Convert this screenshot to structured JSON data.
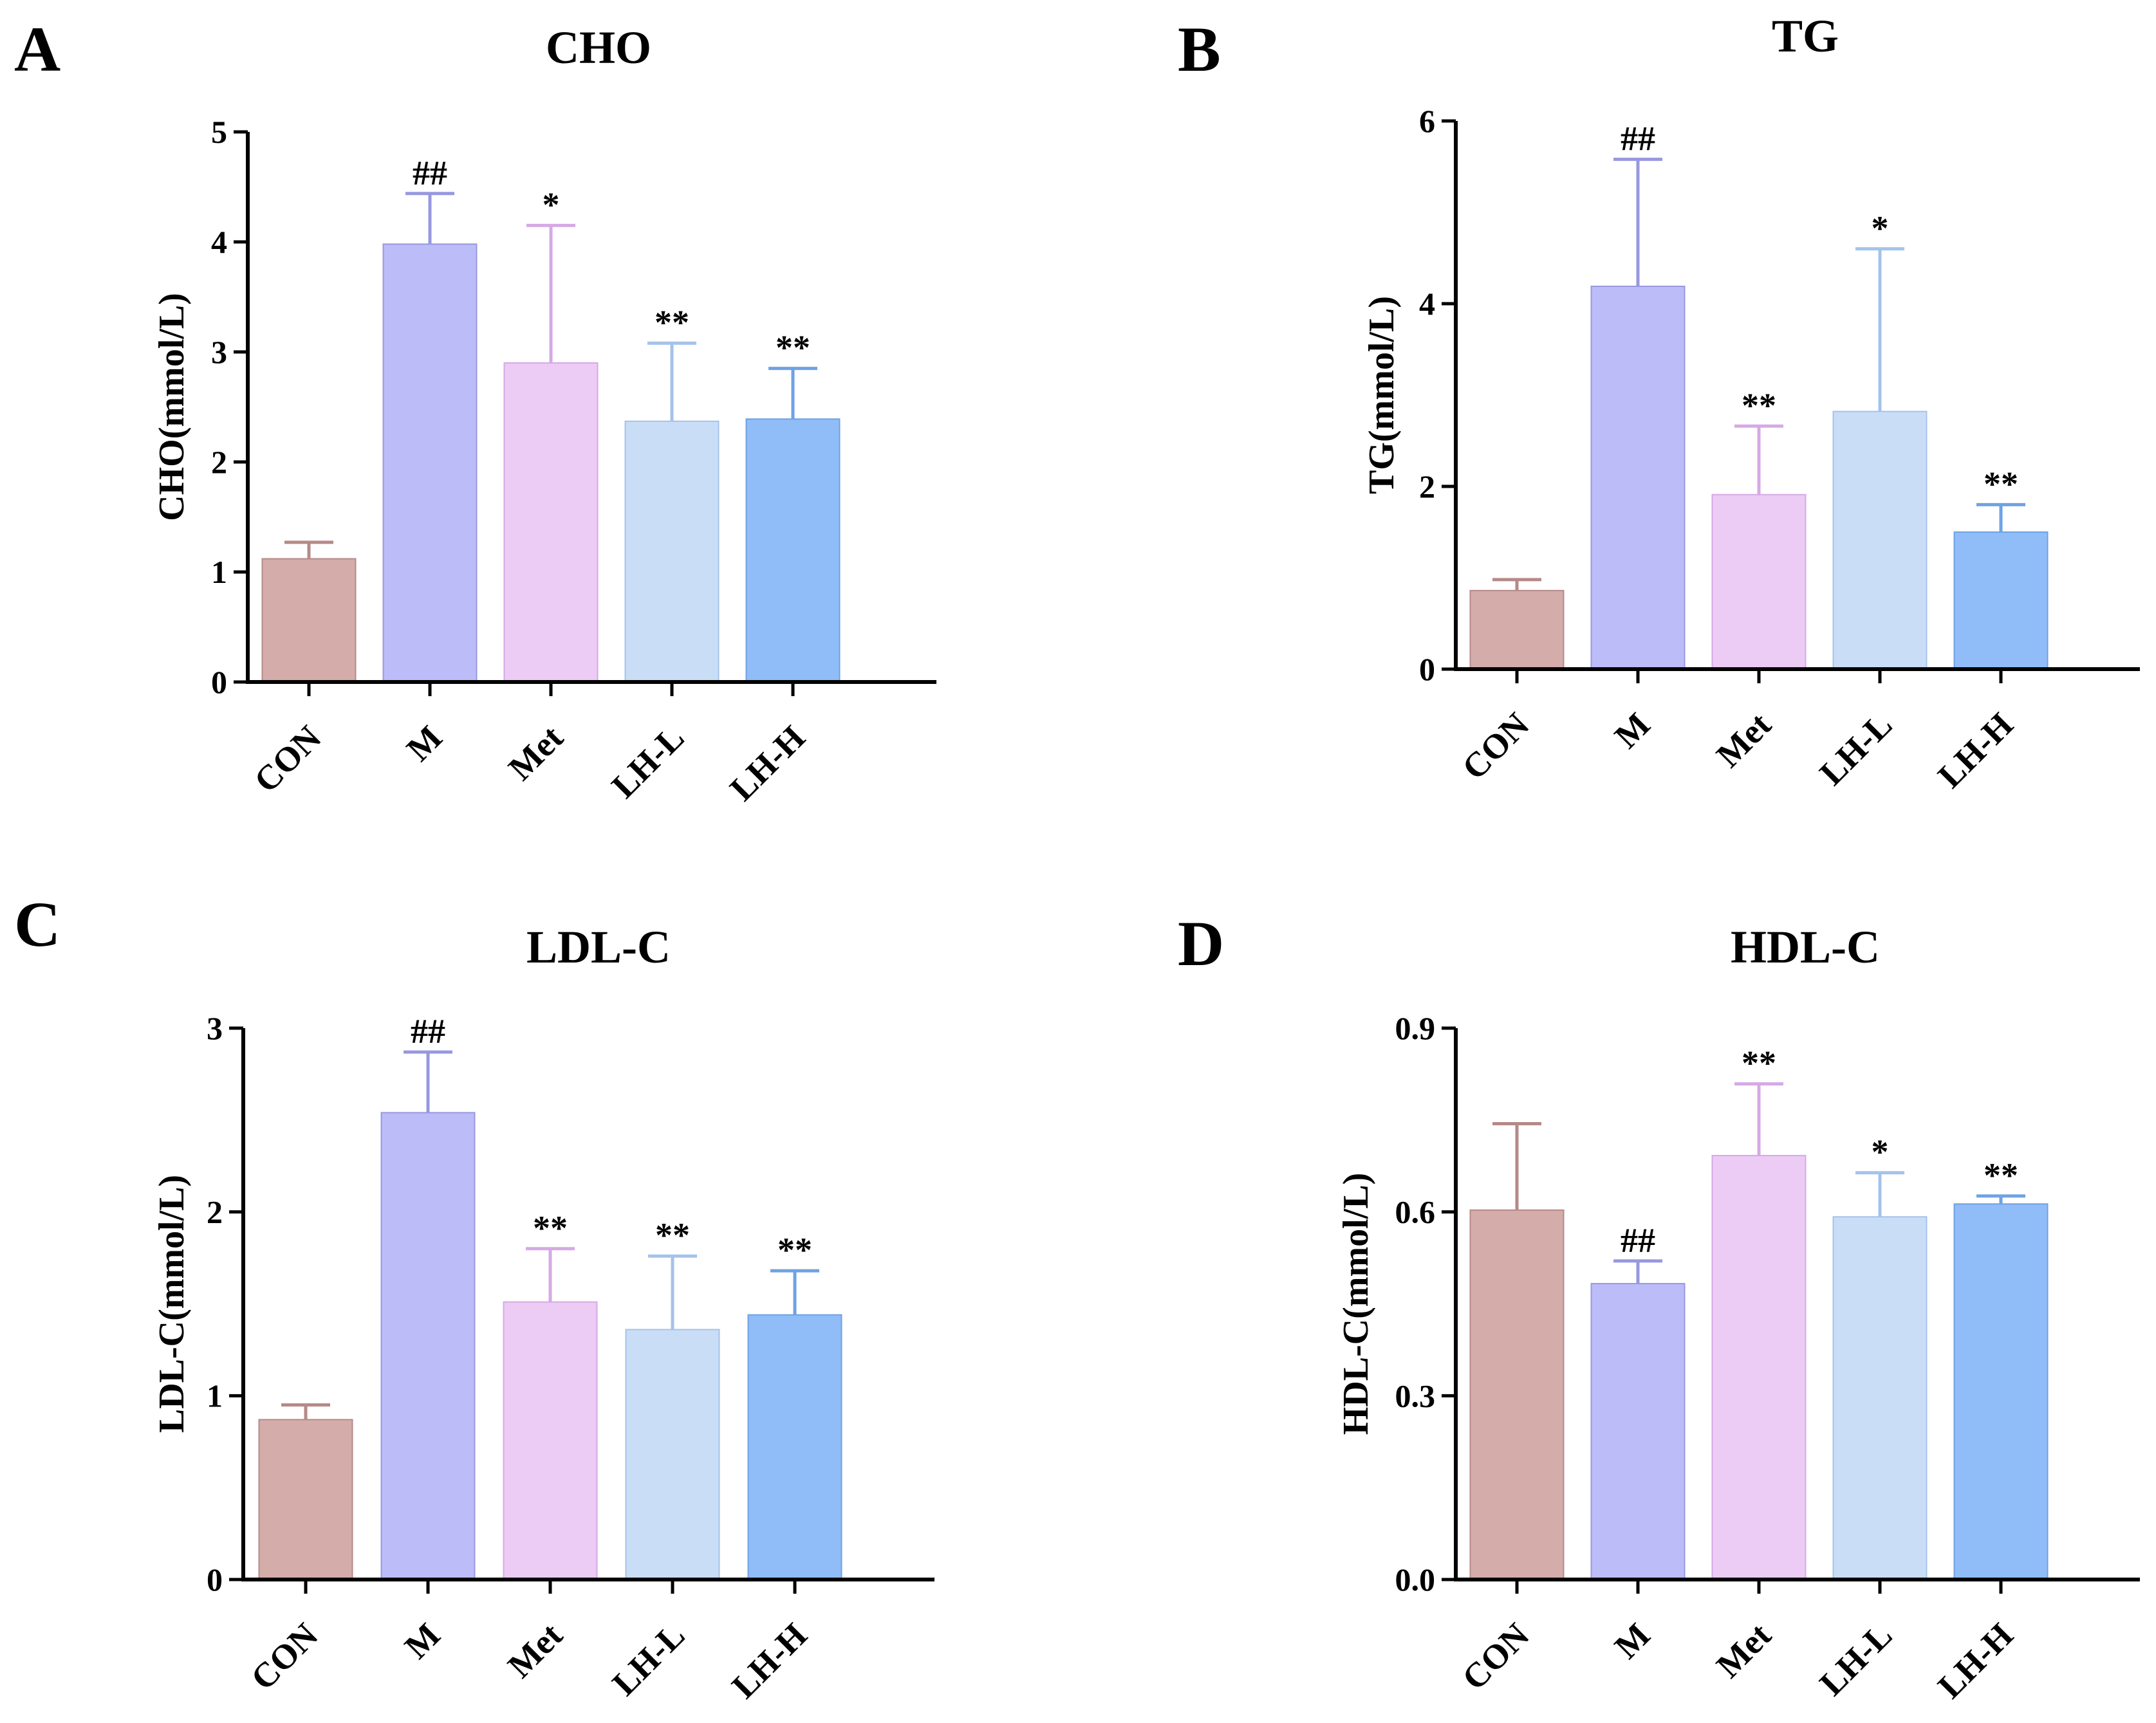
{
  "colors": {
    "CON": "#d4aca9",
    "M": "#bcbcf9",
    "Met": "#eccbf5",
    "LH-L": "#c9ddf7",
    "LH-H": "#90bdf7",
    "error_CON": "#b58a88",
    "error_M": "#9898e0",
    "error_Met": "#d6a9e5",
    "error_LH-L": "#a5c3e9",
    "error_LH-H": "#6fa2e3"
  },
  "chart_data": [
    {
      "panel": "A",
      "type": "bar",
      "title": "CHO",
      "ylabel": "CHO(mmol/L)",
      "categories": [
        "CON",
        "M",
        "Met",
        "LH-L",
        "LH-H"
      ],
      "values": [
        1.12,
        3.98,
        2.9,
        2.37,
        2.39
      ],
      "errors": [
        0.15,
        0.46,
        1.25,
        0.71,
        0.46
      ],
      "significance": [
        "",
        "##",
        "*",
        "**",
        "**"
      ],
      "ylim": [
        0,
        5
      ],
      "yticks": [
        0,
        1,
        2,
        3,
        4,
        5
      ],
      "ytick_labels": [
        "0",
        "1",
        "2",
        "3",
        "4",
        "5"
      ]
    },
    {
      "panel": "B",
      "type": "bar",
      "title": "TG",
      "ylabel": "TG(mmol/L)",
      "categories": [
        "CON",
        "M",
        "Met",
        "LH-L",
        "LH-H"
      ],
      "values": [
        0.86,
        4.19,
        1.91,
        2.82,
        1.5
      ],
      "errors": [
        0.12,
        1.39,
        0.75,
        1.78,
        0.3
      ],
      "significance": [
        "",
        "##",
        "**",
        "*",
        "**"
      ],
      "ylim": [
        0,
        6
      ],
      "yticks": [
        0,
        2,
        4,
        6
      ],
      "ytick_labels": [
        "0",
        "2",
        "4",
        "6"
      ]
    },
    {
      "panel": "C",
      "type": "bar",
      "title": "LDL-C",
      "ylabel": "LDL-C(mmol/L)",
      "categories": [
        "CON",
        "M",
        "Met",
        "LH-L",
        "LH-H"
      ],
      "values": [
        0.87,
        2.54,
        1.51,
        1.36,
        1.44
      ],
      "errors": [
        0.08,
        0.33,
        0.29,
        0.4,
        0.24
      ],
      "significance": [
        "",
        "##",
        "**",
        "**",
        "**"
      ],
      "ylim": [
        0,
        3
      ],
      "yticks": [
        0,
        1,
        2,
        3
      ],
      "ytick_labels": [
        "0",
        "1",
        "2",
        "3"
      ]
    },
    {
      "panel": "D",
      "type": "bar",
      "title": "HDL-C",
      "ylabel": "HDL-C(mmol/L)",
      "categories": [
        "CON",
        "M",
        "Met",
        "LH-L",
        "LH-H"
      ],
      "values": [
        0.603,
        0.483,
        0.692,
        0.592,
        0.613
      ],
      "errors": [
        0.141,
        0.037,
        0.117,
        0.072,
        0.013
      ],
      "significance": [
        "",
        "##",
        "**",
        "*",
        "**"
      ],
      "ylim": [
        0,
        0.9
      ],
      "yticks": [
        0,
        0.3,
        0.6,
        0.9
      ],
      "ytick_labels": [
        "0.0",
        "0.3",
        "0.6",
        "0.9"
      ]
    }
  ]
}
